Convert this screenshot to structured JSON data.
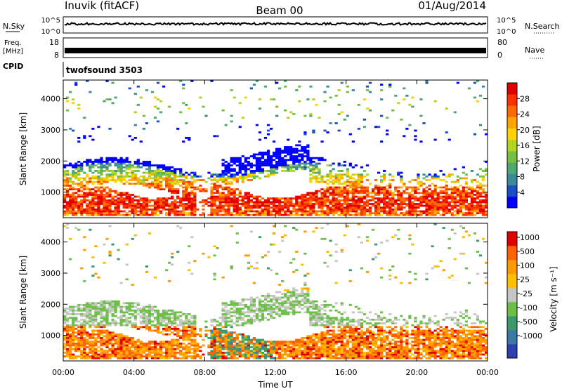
{
  "header": {
    "station": "Inuvik (fitACF)",
    "beam": "Beam 00",
    "date": "01/Aug/2014"
  },
  "noise_panel": {
    "left_label": "N.Sky",
    "right_label": "N.Search",
    "left_ticks": [
      "10^5",
      "10^0"
    ],
    "right_ticks": [
      "10^5",
      "10^0"
    ]
  },
  "freq_panel": {
    "left_label": "Freq.",
    "left_unit": "[MHz]",
    "right_label": "Nave",
    "left_ticks": [
      "18",
      "8"
    ],
    "right_ticks": [
      "80",
      "0"
    ]
  },
  "cpid": {
    "label": "CPID",
    "value": "twofsound 3503"
  },
  "chart_data": [
    {
      "type": "heatmap",
      "name": "power",
      "ylabel": "Slant Range [km]",
      "yticks": [
        "4000",
        "3000",
        "2000",
        "1000"
      ],
      "ylim": [
        180,
        4600
      ],
      "colorbar_label": "Power [dB]",
      "colorbar_ticks": [
        "28",
        "24",
        "20",
        "16",
        "12",
        "8",
        "4"
      ],
      "colorbar_colors": [
        "#0000ff",
        "#1a4fc8",
        "#3b8a9a",
        "#4fa870",
        "#76c043",
        "#b5d420",
        "#ffd200",
        "#ffa500",
        "#ff6a00",
        "#ff3000",
        "#e00000"
      ]
    },
    {
      "type": "heatmap",
      "name": "velocity",
      "ylabel": "Slant Range [km]",
      "yticks": [
        "4000",
        "3000",
        "2000",
        "1000"
      ],
      "ylim": [
        180,
        4600
      ],
      "colorbar_label": "Velocity [m s⁻¹]",
      "colorbar_ticks": [
        "1000",
        "500",
        "100",
        "25",
        "-25",
        "-100",
        "-500",
        "-1000"
      ],
      "colorbar_colors": [
        "#2a3fb0",
        "#3a78a8",
        "#3c9a6a",
        "#6cc048",
        "#c6c6c2",
        "#ffc000",
        "#ff9a00",
        "#ff6000",
        "#e00000"
      ]
    }
  ],
  "time_axis": {
    "xlabel": "Time UT",
    "ticks": [
      "00:00",
      "04:00",
      "08:00",
      "12:00",
      "16:00",
      "20:00",
      "00:00"
    ],
    "xlim_hours": [
      0,
      24
    ]
  }
}
